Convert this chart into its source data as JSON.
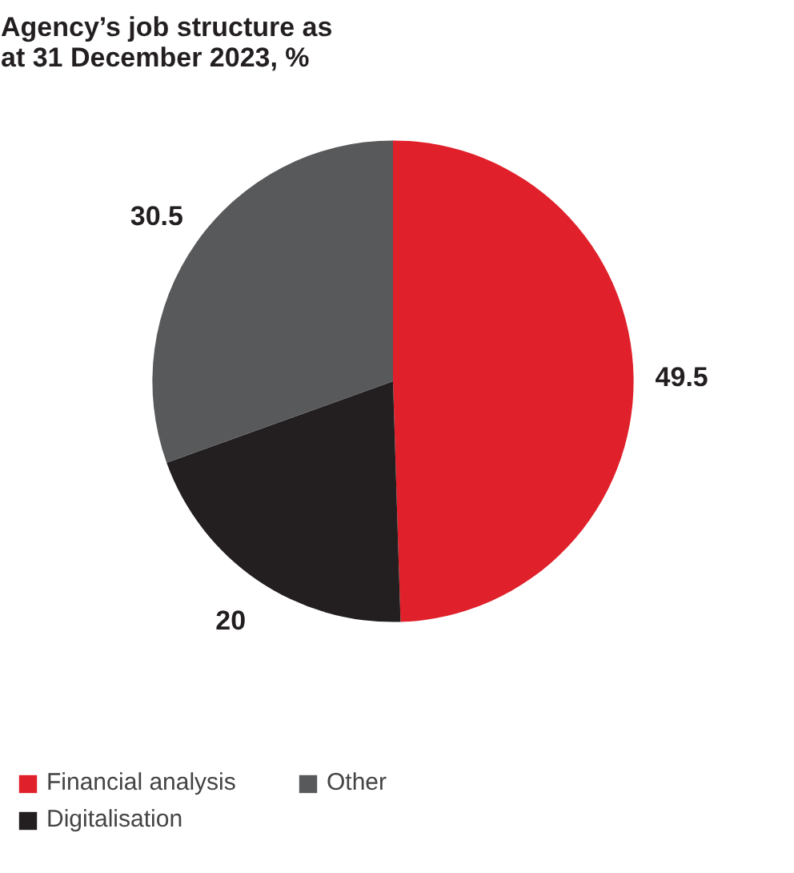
{
  "chart_data": {
    "type": "pie",
    "title": "Agency’s job structure as at 31 December 2023, %",
    "categories": [
      "Financial analysis",
      "Digitalisation",
      "Other"
    ],
    "values": [
      49.5,
      20,
      30.5
    ],
    "colors": [
      "#e0202a",
      "#231f20",
      "#58595b"
    ],
    "data_labels": true,
    "legend": "bottom"
  }
}
